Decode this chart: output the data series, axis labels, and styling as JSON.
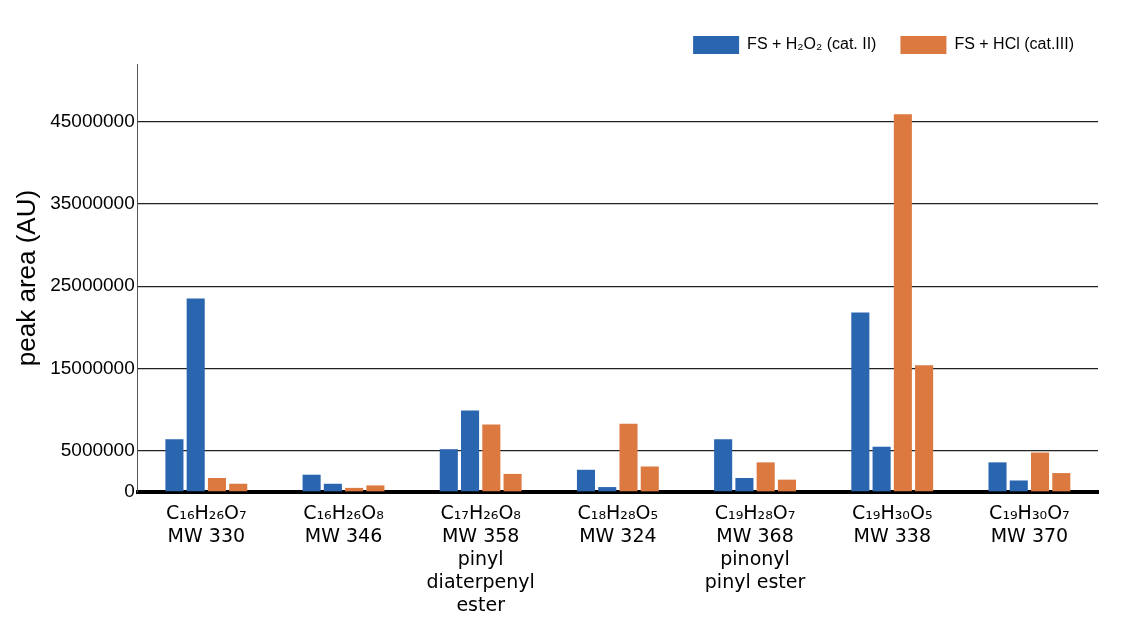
{
  "chart_data": {
    "type": "bar",
    "ylabel": "peak area (AU)",
    "categories": [
      "C₁₆H₂₆O₇\nMW 330",
      "C₁₆H₂₆O₈\nMW 346",
      "C₁₇H₂₆O₈\nMW 358\npinyl\ndiaterpenyl\nester",
      "C₁₈H₂₈O₅\nMW 324",
      "C₁₉H₂₈O₇\nMW 368\npinonyl\npinyl ester",
      "C₁₉H₃₀O₅\nMW 338",
      "C₁₉H₃₀O₇\nMW 370"
    ],
    "series": [
      {
        "name": "FS + H₂O₂ (cat. II)",
        "color": "#2a65b0",
        "values": [
          6400000,
          2100000,
          5200000,
          2700000,
          6400000,
          21800000,
          3600000
        ]
      },
      {
        "color": "#2a65b0",
        "values": [
          23500000,
          1000000,
          9900000,
          600000,
          1700000,
          5500000,
          1400000
        ]
      },
      {
        "name": "FS + HCl (cat.III)",
        "color": "#dc7941",
        "values": [
          1700000,
          500000,
          8200000,
          8300000,
          3600000,
          45900000,
          4800000
        ]
      },
      {
        "color": "#dc7941",
        "values": [
          1000000,
          800000,
          2200000,
          3100000,
          1500000,
          15400000,
          2300000
        ]
      }
    ],
    "ylim": [
      0,
      52000000
    ],
    "yticks": [
      0,
      5000000,
      15000000,
      25000000,
      35000000,
      45000000
    ],
    "grid": "y",
    "legend": "top right"
  }
}
